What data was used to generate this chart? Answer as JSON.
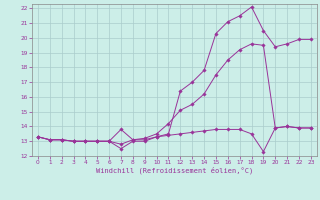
{
  "xlabel": "Windchill (Refroidissement éolien,°C)",
  "xlim": [
    -0.5,
    23.5
  ],
  "ylim": [
    12,
    22.3
  ],
  "yticks": [
    12,
    13,
    14,
    15,
    16,
    17,
    18,
    19,
    20,
    21,
    22
  ],
  "xticks": [
    0,
    1,
    2,
    3,
    4,
    5,
    6,
    7,
    8,
    9,
    10,
    11,
    12,
    13,
    14,
    15,
    16,
    17,
    18,
    19,
    20,
    21,
    22,
    23
  ],
  "bg_color": "#cceee8",
  "grid_color": "#aacccc",
  "line_color": "#993399",
  "line1_x": [
    0,
    1,
    2,
    3,
    4,
    5,
    6,
    7,
    8,
    9,
    10,
    11,
    12,
    13,
    14,
    15,
    16,
    17,
    18,
    19,
    20,
    21,
    22,
    23
  ],
  "line1_y": [
    13.3,
    13.1,
    13.1,
    13.0,
    13.0,
    13.0,
    13.0,
    12.5,
    13.0,
    13.0,
    13.3,
    13.5,
    16.4,
    17.0,
    17.8,
    20.3,
    21.1,
    21.5,
    22.1,
    20.5,
    19.4,
    19.6,
    19.9,
    19.9
  ],
  "line2_x": [
    0,
    1,
    2,
    3,
    4,
    5,
    6,
    7,
    8,
    9,
    10,
    11,
    12,
    13,
    14,
    15,
    16,
    17,
    18,
    19,
    20,
    21,
    22,
    23
  ],
  "line2_y": [
    13.3,
    13.1,
    13.1,
    13.0,
    13.0,
    13.0,
    13.0,
    13.8,
    13.1,
    13.1,
    13.3,
    13.4,
    13.5,
    13.6,
    13.7,
    13.8,
    13.8,
    13.8,
    13.5,
    12.3,
    13.9,
    14.0,
    13.9,
    13.9
  ],
  "line3_x": [
    0,
    1,
    2,
    3,
    4,
    5,
    6,
    7,
    8,
    9,
    10,
    11,
    12,
    13,
    14,
    15,
    16,
    17,
    18,
    19,
    20,
    21,
    22,
    23
  ],
  "line3_y": [
    13.3,
    13.1,
    13.1,
    13.0,
    13.0,
    13.0,
    13.0,
    12.8,
    13.1,
    13.2,
    13.5,
    14.2,
    15.1,
    15.5,
    16.2,
    17.5,
    18.5,
    19.2,
    19.6,
    19.5,
    13.9,
    14.0,
    13.9,
    13.9
  ]
}
